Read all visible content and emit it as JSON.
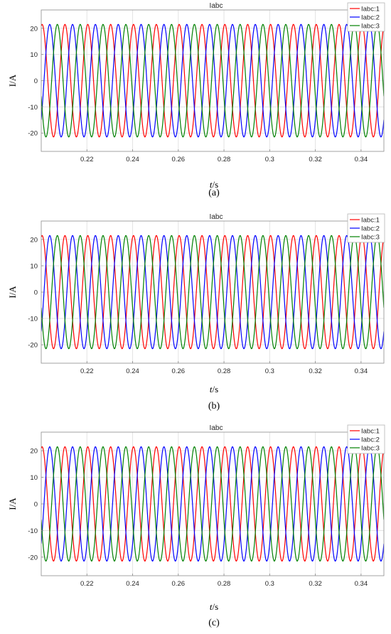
{
  "colors": {
    "red": "#ff0000",
    "blue": "#0000ff",
    "green": "#008000"
  },
  "chart_data": [
    {
      "type": "line",
      "title": "Iabc",
      "xlabel_italic": "t",
      "xlabel_rest": "/s",
      "ylabel": "I/A",
      "caption": "(a)",
      "xlim": [
        0.2,
        0.35
      ],
      "ylim": [
        -27,
        27
      ],
      "xticks": [
        0.22,
        0.24,
        0.26,
        0.28,
        0.3,
        0.32,
        0.34
      ],
      "xtick_labels": [
        "0.22",
        "0.24",
        "0.26",
        "0.28",
        "0.3",
        "0.32",
        "0.34"
      ],
      "yticks": [
        -20,
        -10,
        0,
        10,
        20
      ],
      "ytick_labels": [
        "-20",
        "-10",
        "0",
        "10",
        "20"
      ],
      "grid": true,
      "legend_position": "top-right",
      "frequency_hz": 100,
      "series": [
        {
          "name": "Iabc:1",
          "color": "#ff0000",
          "amplitude": 21.5,
          "phase_deg": 76
        },
        {
          "name": "Iabc:2",
          "color": "#0000ff",
          "amplitude": 21.5,
          "phase_deg": -44
        },
        {
          "name": "Iabc:3",
          "color": "#008000",
          "amplitude": 21.5,
          "phase_deg": 196
        }
      ]
    },
    {
      "type": "line",
      "title": "Iabc",
      "xlabel_italic": "t",
      "xlabel_rest": "/s",
      "ylabel": "I/A",
      "caption": "(b)",
      "xlim": [
        0.2,
        0.35
      ],
      "ylim": [
        -27,
        27
      ],
      "xticks": [
        0.22,
        0.24,
        0.26,
        0.28,
        0.3,
        0.32,
        0.34
      ],
      "xtick_labels": [
        "0.22",
        "0.24",
        "0.26",
        "0.28",
        "0.3",
        "0.32",
        "0.34"
      ],
      "yticks": [
        -20,
        -10,
        0,
        10,
        20
      ],
      "ytick_labels": [
        "-20",
        "-10",
        "0",
        "10",
        "20"
      ],
      "grid": true,
      "legend_position": "top-right",
      "frequency_hz": 100,
      "series": [
        {
          "name": "Iabc:1",
          "color": "#ff0000",
          "amplitude": 21.5,
          "phase_deg": 76
        },
        {
          "name": "Iabc:2",
          "color": "#0000ff",
          "amplitude": 21.5,
          "phase_deg": -44
        },
        {
          "name": "Iabc:3",
          "color": "#008000",
          "amplitude": 21.5,
          "phase_deg": 196
        }
      ]
    },
    {
      "type": "line",
      "title": "Iabc",
      "xlabel_italic": "t",
      "xlabel_rest": "/s",
      "ylabel": "I/A",
      "caption": "(c)",
      "xlim": [
        0.2,
        0.35
      ],
      "ylim": [
        -27,
        27
      ],
      "xticks": [
        0.22,
        0.24,
        0.26,
        0.28,
        0.3,
        0.32,
        0.34
      ],
      "xtick_labels": [
        "0.22",
        "0.24",
        "0.26",
        "0.28",
        "0.3",
        "0.32",
        "0.34"
      ],
      "yticks": [
        -20,
        -10,
        0,
        10,
        20
      ],
      "ytick_labels": [
        "-20",
        "-10",
        "0",
        "10",
        "20"
      ],
      "grid": true,
      "legend_position": "top-right",
      "frequency_hz": 100,
      "series": [
        {
          "name": "Iabc:1",
          "color": "#ff0000",
          "amplitude": 21.5,
          "phase_deg": 76
        },
        {
          "name": "Iabc:2",
          "color": "#0000ff",
          "amplitude": 21.5,
          "phase_deg": -44
        },
        {
          "name": "Iabc:3",
          "color": "#008000",
          "amplitude": 21.5,
          "phase_deg": 196
        }
      ]
    }
  ]
}
